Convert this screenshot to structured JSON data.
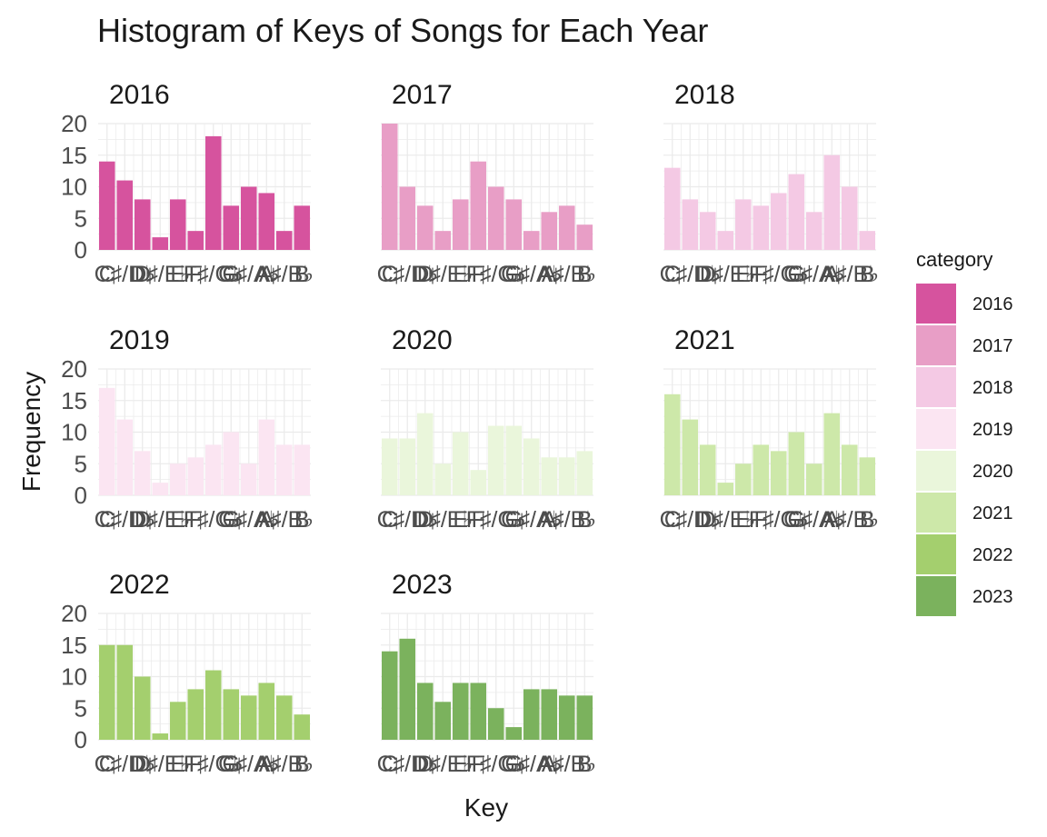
{
  "chart_data": {
    "type": "bar",
    "title": "Histogram of Keys of Songs for Each Year",
    "xlabel": "Key",
    "ylabel": "Frequency",
    "categories": [
      "C",
      "C♯/D♭",
      "D",
      "D♯/E♭",
      "E",
      "F",
      "F♯/G♭",
      "G",
      "G♯/A♭",
      "A",
      "A♯/B♭",
      "B"
    ],
    "ylim": [
      0,
      20
    ],
    "yticks": [
      "0",
      "5",
      "10",
      "15",
      "20"
    ],
    "grid": true,
    "legend": {
      "title": "category",
      "position": "right"
    },
    "series": [
      {
        "name": "2016",
        "color": "#d6539e",
        "values": [
          14,
          11,
          8,
          2,
          8,
          3,
          18,
          7,
          10,
          9,
          3,
          7
        ]
      },
      {
        "name": "2017",
        "color": "#e89ec6",
        "values": [
          20,
          10,
          7,
          3,
          8,
          14,
          10,
          8,
          3,
          6,
          7,
          4
        ]
      },
      {
        "name": "2018",
        "color": "#f4c9e4",
        "values": [
          13,
          8,
          6,
          3,
          8,
          7,
          9,
          12,
          6,
          15,
          10,
          3
        ]
      },
      {
        "name": "2019",
        "color": "#fbe5f2",
        "values": [
          17,
          12,
          7,
          2,
          5,
          6,
          8,
          10,
          5,
          12,
          8,
          8
        ]
      },
      {
        "name": "2020",
        "color": "#eaf6db",
        "values": [
          9,
          9,
          13,
          5,
          10,
          4,
          11,
          11,
          9,
          6,
          6,
          7
        ]
      },
      {
        "name": "2021",
        "color": "#cde8a9",
        "values": [
          16,
          12,
          8,
          2,
          5,
          8,
          7,
          10,
          5,
          13,
          8,
          6
        ]
      },
      {
        "name": "2022",
        "color": "#a4cf6e",
        "values": [
          15,
          15,
          10,
          1,
          6,
          8,
          11,
          8,
          7,
          9,
          7,
          4
        ]
      },
      {
        "name": "2023",
        "color": "#7bb25d",
        "values": [
          14,
          16,
          9,
          6,
          9,
          9,
          5,
          2,
          8,
          8,
          7,
          7
        ]
      }
    ]
  }
}
